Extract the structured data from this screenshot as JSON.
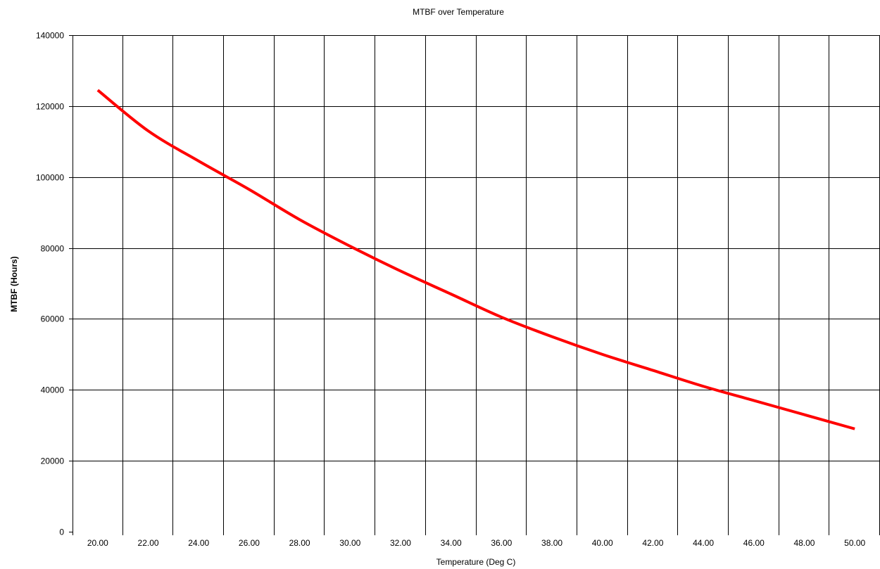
{
  "chart_data": {
    "type": "line",
    "title": "MTBF over Temperature",
    "xlabel": "Temperature (Deg C)",
    "ylabel": "MTBF (Hours)",
    "x_tick_labels": [
      "20.00",
      "22.00",
      "24.00",
      "26.00",
      "28.00",
      "30.00",
      "32.00",
      "34.00",
      "36.00",
      "38.00",
      "40.00",
      "42.00",
      "44.00",
      "46.00",
      "48.00",
      "50.00"
    ],
    "y_tick_labels": [
      "0",
      "20000",
      "40000",
      "60000",
      "80000",
      "100000",
      "120000",
      "140000"
    ],
    "ylim": [
      0,
      140000
    ],
    "grid": true,
    "series": [
      {
        "color": "#ff0000",
        "x": [
          20,
          22,
          24,
          26,
          28,
          30,
          32,
          34,
          36,
          38,
          40,
          42,
          44,
          46,
          48,
          50
        ],
        "y": [
          124500,
          113000,
          104500,
          96500,
          88000,
          80500,
          73500,
          67000,
          60500,
          55000,
          50000,
          45500,
          41000,
          37000,
          33000,
          29000
        ]
      }
    ]
  }
}
